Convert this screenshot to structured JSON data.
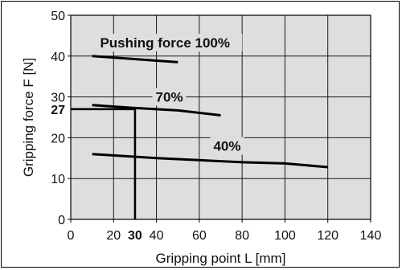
{
  "chart_data": {
    "type": "line",
    "xlabel": "Gripping point L [mm]",
    "ylabel": "Gripping force F [N]",
    "xlim": [
      0,
      140
    ],
    "ylim": [
      0,
      50
    ],
    "x_ticks": [
      0,
      20,
      30,
      40,
      60,
      80,
      100,
      120,
      140
    ],
    "y_ticks": [
      0,
      10,
      20,
      27,
      30,
      40,
      50
    ],
    "highlight_ticks": {
      "x": 30,
      "y": 27
    },
    "grid": true,
    "series": [
      {
        "name": "Pushing force 100%",
        "x": [
          10,
          50
        ],
        "y": [
          40,
          38.5
        ]
      },
      {
        "name": "70%",
        "x": [
          10,
          30,
          50,
          70
        ],
        "y": [
          28,
          27.3,
          26.7,
          25.5
        ]
      },
      {
        "name": "40%",
        "x": [
          10,
          40,
          80,
          100,
          120
        ],
        "y": [
          16,
          15,
          14,
          13.7,
          12.8
        ]
      }
    ],
    "reference_lines": [
      {
        "points": [
          [
            0,
            27
          ],
          [
            30,
            27
          ],
          [
            30,
            0
          ]
        ]
      }
    ],
    "annotations": [
      {
        "text": "Pushing force 100%",
        "x": 44,
        "y": 43.3
      },
      {
        "text": "70%",
        "x": 46,
        "y": 30
      },
      {
        "text": "40%",
        "x": 73,
        "y": 18
      }
    ]
  }
}
